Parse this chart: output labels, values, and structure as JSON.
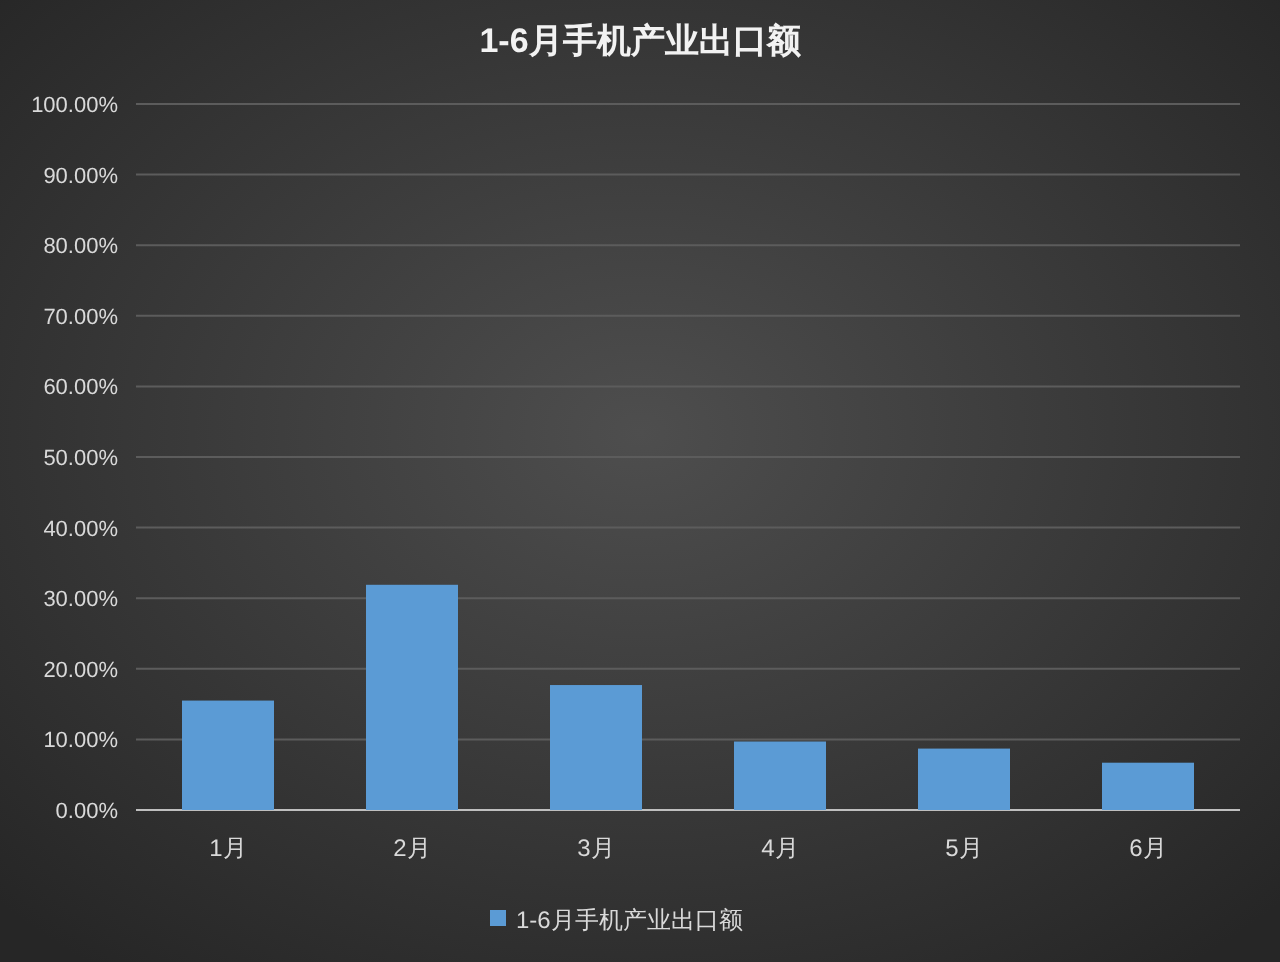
{
  "chart_data": {
    "type": "bar",
    "title": "1-6月手机产业出口额",
    "categories": [
      "1月",
      "2月",
      "3月",
      "4月",
      "5月",
      "6月"
    ],
    "series": [
      {
        "name": "1-6月手机产业出口额",
        "color": "#5b9bd5",
        "values": [
          15.5,
          31.9,
          17.7,
          9.7,
          8.7,
          6.7
        ]
      }
    ],
    "ylim": [
      0,
      100
    ],
    "yticks": [
      {
        "value": 0,
        "label": "0.00%"
      },
      {
        "value": 10,
        "label": "10.00%"
      },
      {
        "value": 20,
        "label": "20.00%"
      },
      {
        "value": 30,
        "label": "30.00%"
      },
      {
        "value": 40,
        "label": "40.00%"
      },
      {
        "value": 50,
        "label": "50.00%"
      },
      {
        "value": 60,
        "label": "60.00%"
      },
      {
        "value": 70,
        "label": "70.00%"
      },
      {
        "value": 80,
        "label": "80.00%"
      },
      {
        "value": 90,
        "label": "90.00%"
      },
      {
        "value": 100,
        "label": "100.00%"
      }
    ],
    "grid": "y",
    "legend": "bottom"
  }
}
